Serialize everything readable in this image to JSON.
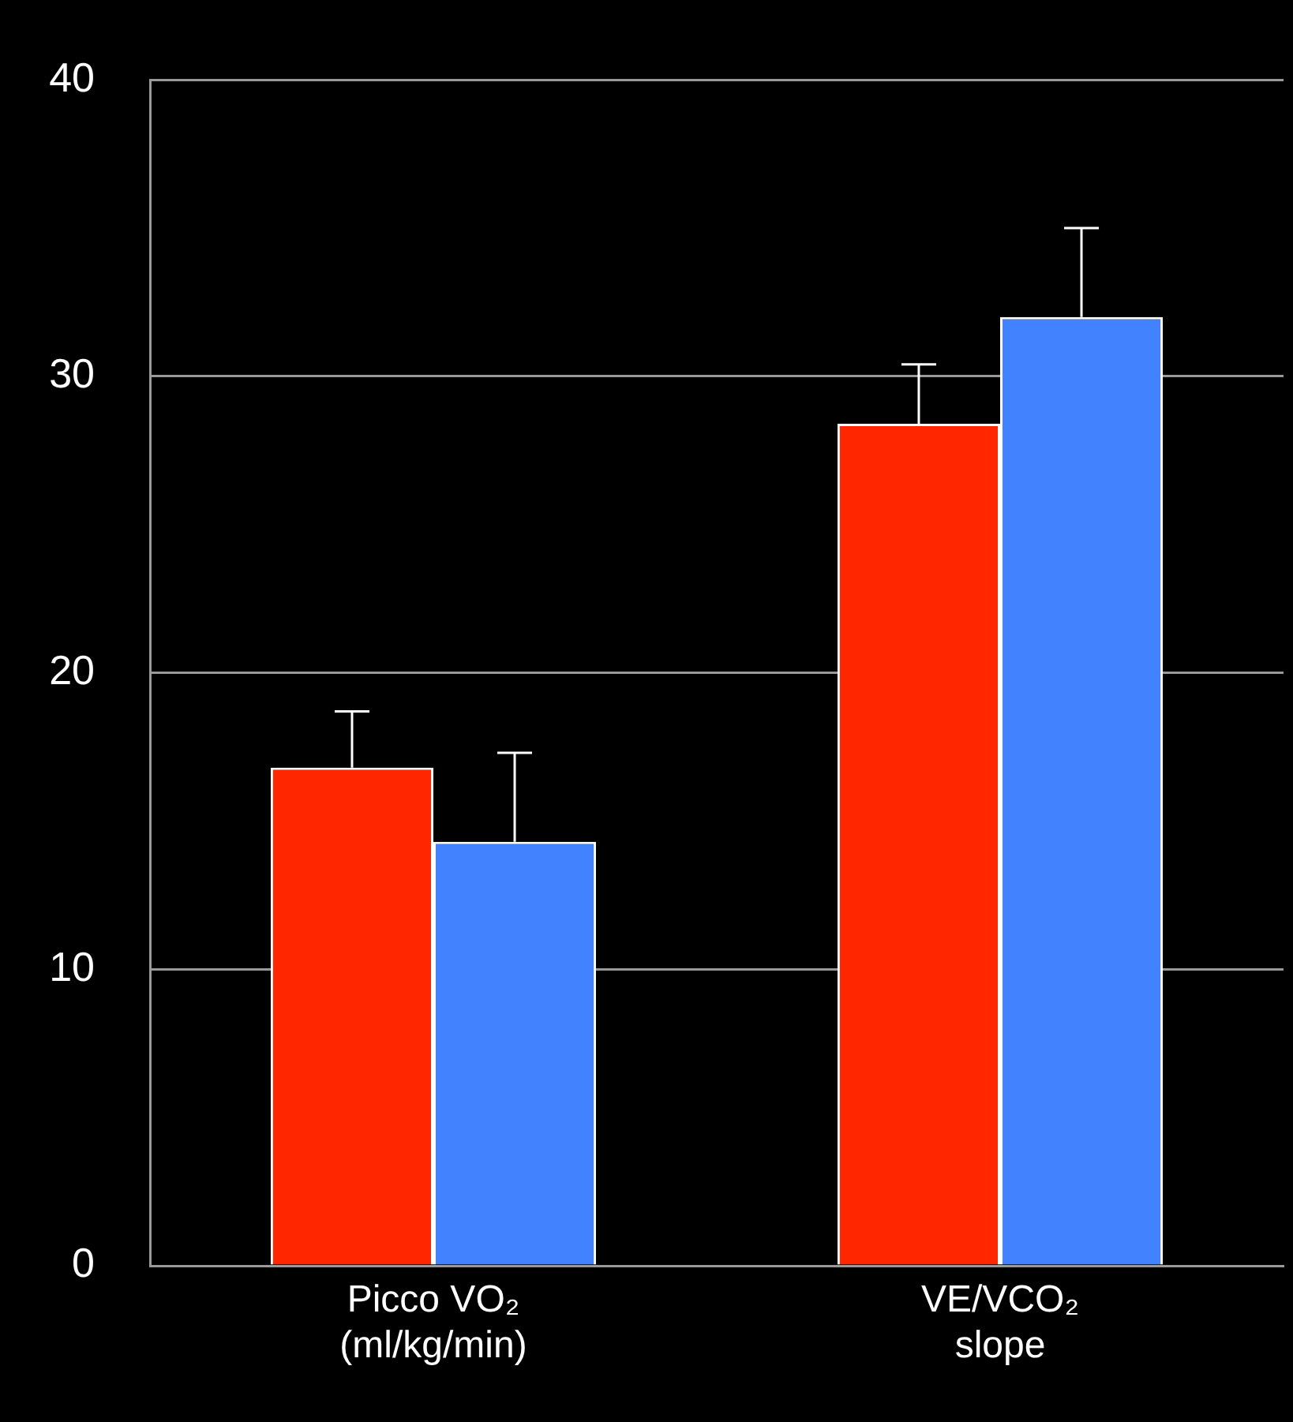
{
  "chart_data": {
    "type": "bar",
    "categories": [
      "Picco VO₂\n(ml/kg/min)",
      "VE/VCO₂\nslope"
    ],
    "series": [
      {
        "color": "#ff2600",
        "values": [
          16.8,
          28.4
        ],
        "errors": [
          [
            16.8,
            18.7
          ],
          [
            28.4,
            30.4
          ]
        ]
      },
      {
        "color": "#4382ff",
        "values": [
          14.3,
          32.0
        ],
        "errors": [
          [
            14.3,
            17.3
          ],
          [
            32.0,
            35.0
          ]
        ]
      }
    ],
    "ylim": [
      0,
      40
    ],
    "yticks": [
      0,
      10,
      20,
      30,
      40
    ],
    "grid": "y",
    "legend": false
  }
}
